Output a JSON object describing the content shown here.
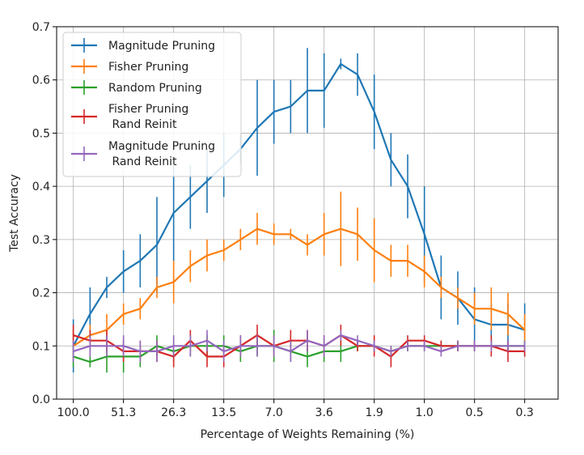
{
  "chart_data": {
    "type": "line",
    "title": "",
    "xlabel": "Percentage of Weights Remaining (%)",
    "ylabel": "Test Accuracy",
    "ylim": [
      0.0,
      0.7
    ],
    "yticks": [
      0.0,
      0.1,
      0.2,
      0.3,
      0.4,
      0.5,
      0.6,
      0.7
    ],
    "ytick_labels": [
      "0.0",
      "0.1",
      "0.2",
      "0.3",
      "0.4",
      "0.5",
      "0.6",
      "0.7"
    ],
    "x_index_range": [
      -1,
      29
    ],
    "xticks": [
      0,
      3,
      6,
      9,
      12,
      15,
      18,
      21,
      24,
      27
    ],
    "xtick_labels": [
      "100.0",
      "51.3",
      "26.3",
      "13.5",
      "7.0",
      "3.6",
      "1.9",
      "1.0",
      "0.5",
      "0.3"
    ],
    "grid": true,
    "legend_position": "top-left",
    "x": [
      0,
      1,
      2,
      3,
      4,
      5,
      6,
      7,
      8,
      9,
      10,
      11,
      12,
      13,
      14,
      15,
      16,
      17,
      18,
      19,
      20,
      21,
      22,
      23,
      24,
      25,
      26,
      27
    ],
    "series": [
      {
        "name": "Magnitude Pruning",
        "color": "#1f77b4",
        "values": [
          0.1,
          0.16,
          0.21,
          0.24,
          0.26,
          0.29,
          0.35,
          0.38,
          0.41,
          0.44,
          0.47,
          0.51,
          0.54,
          0.55,
          0.58,
          0.58,
          0.63,
          0.61,
          0.54,
          0.45,
          0.4,
          0.31,
          0.21,
          0.19,
          0.15,
          0.14,
          0.14,
          0.13
        ],
        "errors": [
          0.05,
          0.05,
          0.02,
          0.04,
          0.05,
          0.09,
          0.09,
          0.06,
          0.06,
          0.06,
          0.03,
          0.09,
          0.06,
          0.05,
          0.08,
          0.07,
          0.01,
          0.04,
          0.07,
          0.05,
          0.06,
          0.09,
          0.06,
          0.05,
          0.06,
          0.04,
          0.04,
          0.05
        ]
      },
      {
        "name": "Fisher Pruning",
        "color": "#ff7f0e",
        "values": [
          0.1,
          0.12,
          0.13,
          0.16,
          0.17,
          0.21,
          0.22,
          0.25,
          0.27,
          0.28,
          0.3,
          0.32,
          0.31,
          0.31,
          0.29,
          0.31,
          0.32,
          0.31,
          0.28,
          0.26,
          0.26,
          0.24,
          0.21,
          0.19,
          0.17,
          0.17,
          0.16,
          0.13
        ],
        "errors": [
          0.03,
          0.02,
          0.03,
          0.02,
          0.02,
          0.02,
          0.04,
          0.03,
          0.03,
          0.02,
          0.02,
          0.03,
          0.02,
          0.01,
          0.02,
          0.04,
          0.07,
          0.05,
          0.06,
          0.03,
          0.03,
          0.03,
          0.02,
          0.02,
          0.03,
          0.04,
          0.04,
          0.03
        ]
      },
      {
        "name": "Random Pruning",
        "color": "#2ca02c",
        "values": [
          0.08,
          0.07,
          0.08,
          0.08,
          0.08,
          0.1,
          0.09,
          0.1,
          0.1,
          0.1,
          0.09,
          0.1,
          0.1,
          0.09,
          0.08,
          0.09,
          0.09,
          0.1,
          0.1,
          0.09,
          0.1,
          0.1,
          0.1,
          0.1,
          0.1,
          0.1,
          0.1,
          0.1
        ],
        "errors": [
          0.02,
          0.01,
          0.03,
          0.03,
          0.02,
          0.02,
          0.02,
          0.02,
          0.02,
          0.02,
          0.02,
          0.02,
          0.03,
          0.02,
          0.02,
          0.02,
          0.02,
          0.01,
          0.01,
          0.01,
          0.01,
          0.01,
          0.01,
          0.01,
          0.01,
          0.01,
          0.01,
          0.01
        ]
      },
      {
        "name": "Fisher Pruning\n Rand Reinit",
        "color": "#d62728",
        "values": [
          0.12,
          0.11,
          0.11,
          0.09,
          0.09,
          0.09,
          0.08,
          0.11,
          0.08,
          0.08,
          0.1,
          0.12,
          0.1,
          0.11,
          0.11,
          0.1,
          0.12,
          0.1,
          0.1,
          0.08,
          0.11,
          0.11,
          0.1,
          0.1,
          0.1,
          0.1,
          0.09,
          0.09
        ],
        "errors": [
          0.02,
          0.02,
          0.02,
          0.02,
          0.02,
          0.02,
          0.02,
          0.02,
          0.02,
          0.02,
          0.02,
          0.02,
          0.02,
          0.02,
          0.02,
          0.02,
          0.02,
          0.01,
          0.02,
          0.02,
          0.01,
          0.01,
          0.01,
          0.01,
          0.01,
          0.02,
          0.02,
          0.01
        ]
      },
      {
        "name": "Magnitude Pruning\n Rand Reinit",
        "color": "#9467bd",
        "values": [
          0.09,
          0.1,
          0.1,
          0.1,
          0.09,
          0.09,
          0.1,
          0.1,
          0.11,
          0.09,
          0.1,
          0.1,
          0.1,
          0.09,
          0.11,
          0.1,
          0.12,
          0.11,
          0.1,
          0.09,
          0.1,
          0.1,
          0.09,
          0.1,
          0.1,
          0.1,
          0.1,
          0.1
        ],
        "errors": [
          0.02,
          0.02,
          0.02,
          0.02,
          0.02,
          0.02,
          0.02,
          0.02,
          0.02,
          0.02,
          0.02,
          0.02,
          0.02,
          0.02,
          0.02,
          0.02,
          0.01,
          0.01,
          0.01,
          0.01,
          0.01,
          0.01,
          0.01,
          0.01,
          0.01,
          0.01,
          0.01,
          0.01
        ]
      }
    ]
  }
}
